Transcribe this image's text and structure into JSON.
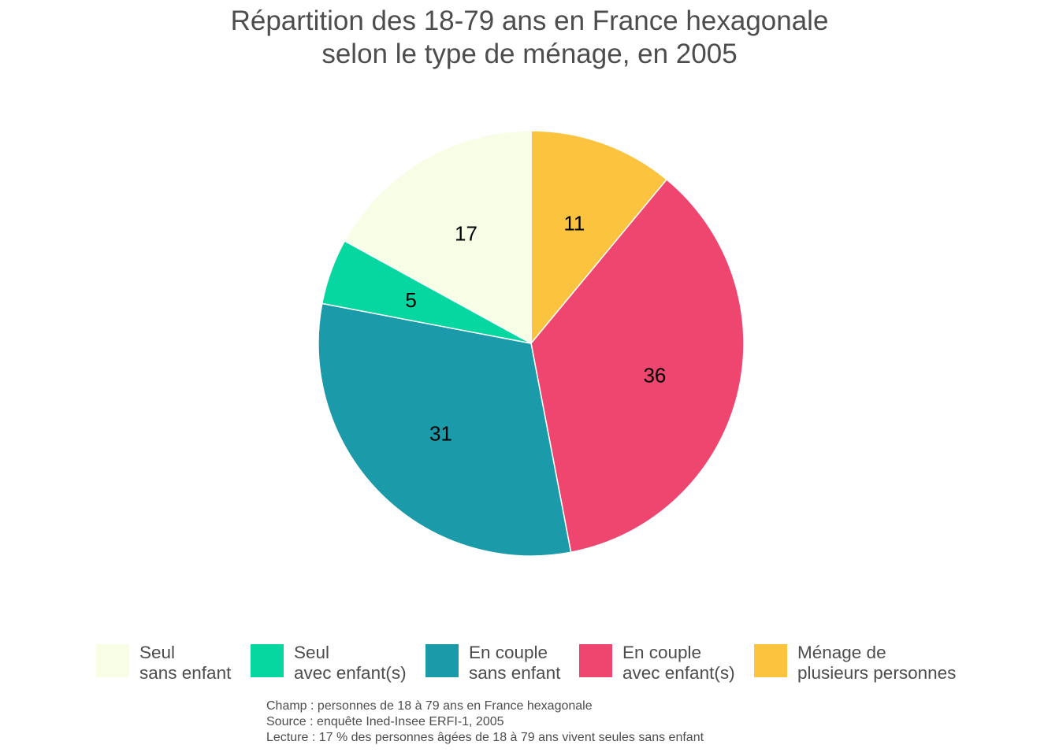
{
  "title": {
    "line1": "Répartition des 18-79 ans en France hexagonale",
    "line2": "selon le type de ménage, en 2005"
  },
  "chart_data": {
    "type": "pie",
    "title": "Répartition des 18-79 ans en France hexagonale selon le type de ménage, en 2005",
    "start": "12 o'clock",
    "direction": "clockwise",
    "slice_border": "#ffffff",
    "slices": [
      {
        "label_line1": "Ménage de",
        "label_line2": "plusieurs personnes",
        "value": 11,
        "display": "11",
        "color": "#fcc33e"
      },
      {
        "label_line1": "En couple",
        "label_line2": "avec enfant(s)",
        "value": 36,
        "display": "36",
        "color": "#ef4670"
      },
      {
        "label_line1": "En couple",
        "label_line2": "sans enfant",
        "value": 31,
        "display": "31",
        "color": "#1b9aa9"
      },
      {
        "label_line1": "Seul",
        "label_line2": "avec enfant(s)",
        "value": 5,
        "display": "5",
        "color": "#06d6a0"
      },
      {
        "label_line1": "Seul",
        "label_line2": "sans enfant",
        "value": 17,
        "display": "17",
        "color": "#f8fde5"
      }
    ],
    "legend": {
      "position": "bottom",
      "order": [
        "Seul sans enfant",
        "Seul avec enfant(s)",
        "En couple sans enfant",
        "En couple avec enfant(s)",
        "Ménage de plusieurs personnes"
      ]
    }
  },
  "legend_items": [
    {
      "line1": "Seul",
      "line2": "sans enfant",
      "color": "#f8fde5"
    },
    {
      "line1": "Seul",
      "line2": "avec enfant(s)",
      "color": "#06d6a0"
    },
    {
      "line1": "En couple",
      "line2": "sans enfant",
      "color": "#1b9aa9"
    },
    {
      "line1": "En couple",
      "line2": "avec enfant(s)",
      "color": "#ef4670"
    },
    {
      "line1": "Ménage de",
      "line2": "plusieurs personnes",
      "color": "#fcc33e"
    }
  ],
  "caption": {
    "champ": "Champ : personnes de 18 à 79 ans en France hexagonale",
    "source": "Source : enquête Ined-Insee ERFI-1, 2005",
    "lecture": "Lecture : 17 % des personnes âgées de 18 à 79 ans vivent seules sans enfant"
  }
}
